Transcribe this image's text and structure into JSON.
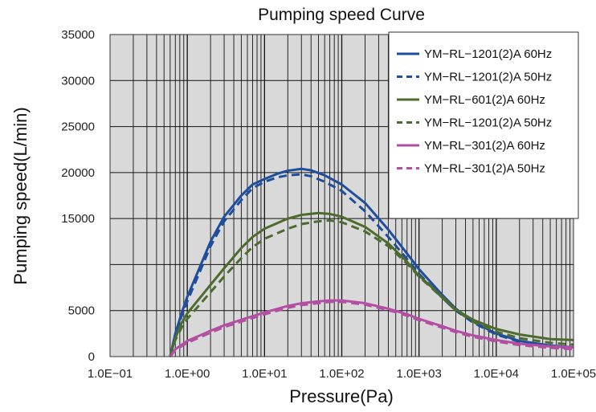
{
  "chart_data": {
    "type": "line",
    "title": "Pumping speed Curve",
    "xlabel": "Pressure(Pa)",
    "ylabel": "Pumping speed(L/min)",
    "x_scale": "log",
    "xlim": [
      0.1,
      100000
    ],
    "ylim": [
      0,
      35000
    ],
    "x_tick_labels": [
      "1.0E−01",
      "1.0E+00",
      "1.0E+01",
      "1.0E+02",
      "1.0E+03",
      "1.0E+04",
      "1.0E+05"
    ],
    "y_ticks": [
      0,
      5000,
      15000,
      20000,
      25000,
      30000,
      35000
    ],
    "y_tick_labels": [
      "0",
      "5000",
      "15000",
      "20000",
      "25000",
      "30000",
      "35000"
    ],
    "y_gridlines": [
      5000,
      10000,
      15000,
      20000,
      25000,
      30000
    ],
    "grid": true,
    "plot_background": "#d9d9d9",
    "legend_position": "top-right",
    "series": [
      {
        "name": "YM−RL−1201(2)A 60Hz",
        "color": "#1f4e9c",
        "dash": "solid",
        "points": [
          [
            0.6,
            0
          ],
          [
            0.7,
            2500
          ],
          [
            0.85,
            4800
          ],
          [
            1,
            6500
          ],
          [
            1.5,
            10000
          ],
          [
            2,
            12500
          ],
          [
            3,
            15200
          ],
          [
            5,
            17500
          ],
          [
            7,
            18700
          ],
          [
            10,
            19300
          ],
          [
            15,
            19900
          ],
          [
            20,
            20200
          ],
          [
            30,
            20400
          ],
          [
            40,
            20250
          ],
          [
            60,
            19700
          ],
          [
            100,
            18700
          ],
          [
            200,
            16700
          ],
          [
            400,
            13800
          ],
          [
            700,
            11200
          ],
          [
            1000,
            9500
          ],
          [
            2000,
            6700
          ],
          [
            3000,
            5200
          ],
          [
            5000,
            3800
          ],
          [
            10000,
            2500
          ],
          [
            20000,
            1700
          ],
          [
            50000,
            1200
          ],
          [
            100000,
            1000
          ]
        ]
      },
      {
        "name": "YM−RL−1201(2)A 50Hz",
        "color": "#1f4e9c",
        "dash": "dashed",
        "points": [
          [
            0.6,
            0
          ],
          [
            0.7,
            2300
          ],
          [
            0.85,
            4500
          ],
          [
            1,
            6000
          ],
          [
            1.5,
            9500
          ],
          [
            2,
            12000
          ],
          [
            3,
            14700
          ],
          [
            5,
            17000
          ],
          [
            7,
            18300
          ],
          [
            10,
            19000
          ],
          [
            15,
            19500
          ],
          [
            20,
            19700
          ],
          [
            30,
            19800
          ],
          [
            40,
            19600
          ],
          [
            60,
            19000
          ],
          [
            100,
            18000
          ],
          [
            200,
            15800
          ],
          [
            400,
            13000
          ],
          [
            700,
            10600
          ],
          [
            1000,
            9000
          ],
          [
            2000,
            6400
          ],
          [
            3000,
            5000
          ],
          [
            5000,
            3700
          ],
          [
            10000,
            2400
          ],
          [
            20000,
            1600
          ],
          [
            50000,
            1100
          ],
          [
            100000,
            900
          ]
        ]
      },
      {
        "name": "YM−RL−601(2)A 60Hz",
        "color": "#4e6b2f",
        "dash": "solid",
        "points": [
          [
            0.6,
            0
          ],
          [
            0.7,
            2000
          ],
          [
            0.85,
            3700
          ],
          [
            1,
            4700
          ],
          [
            2,
            7800
          ],
          [
            3,
            9600
          ],
          [
            5,
            11800
          ],
          [
            7,
            13000
          ],
          [
            10,
            13900
          ],
          [
            20,
            15000
          ],
          [
            30,
            15400
          ],
          [
            50,
            15600
          ],
          [
            70,
            15500
          ],
          [
            100,
            15200
          ],
          [
            200,
            14100
          ],
          [
            400,
            12300
          ],
          [
            700,
            10300
          ],
          [
            1000,
            8800
          ],
          [
            2000,
            6500
          ],
          [
            3000,
            5100
          ],
          [
            5000,
            4000
          ],
          [
            10000,
            3000
          ],
          [
            20000,
            2400
          ],
          [
            50000,
            1900
          ],
          [
            100000,
            1800
          ]
        ]
      },
      {
        "name": "YM−RL−1201(2)A 50Hz",
        "color": "#4e6b2f",
        "dash": "dashed",
        "points": [
          [
            0.6,
            0
          ],
          [
            0.7,
            1800
          ],
          [
            0.85,
            3200
          ],
          [
            1,
            4100
          ],
          [
            2,
            7000
          ],
          [
            3,
            8700
          ],
          [
            5,
            10700
          ],
          [
            7,
            11900
          ],
          [
            10,
            12800
          ],
          [
            20,
            13900
          ],
          [
            30,
            14400
          ],
          [
            50,
            14700
          ],
          [
            70,
            14800
          ],
          [
            100,
            14600
          ],
          [
            200,
            13600
          ],
          [
            400,
            12000
          ],
          [
            700,
            10100
          ],
          [
            1000,
            8700
          ],
          [
            2000,
            6400
          ],
          [
            3000,
            5000
          ],
          [
            5000,
            3800
          ],
          [
            10000,
            2700
          ],
          [
            20000,
            2000
          ],
          [
            50000,
            1500
          ],
          [
            100000,
            1300
          ]
        ]
      },
      {
        "name": "YM−RL−301(2)A 60Hz",
        "color": "#b34fa3",
        "dash": "solid",
        "points": [
          [
            0.6,
            0
          ],
          [
            0.7,
            800
          ],
          [
            1,
            1700
          ],
          [
            2,
            2800
          ],
          [
            3,
            3400
          ],
          [
            5,
            4000
          ],
          [
            10,
            4800
          ],
          [
            20,
            5500
          ],
          [
            30,
            5800
          ],
          [
            50,
            6000
          ],
          [
            70,
            6100
          ],
          [
            100,
            6100
          ],
          [
            200,
            5800
          ],
          [
            400,
            5200
          ],
          [
            700,
            4600
          ],
          [
            1000,
            4100
          ],
          [
            2000,
            3300
          ],
          [
            3000,
            2800
          ],
          [
            5000,
            2300
          ],
          [
            10000,
            1800
          ],
          [
            20000,
            1400
          ],
          [
            50000,
            1100
          ],
          [
            100000,
            1000
          ]
        ]
      },
      {
        "name": "YM−RL−301(2)A 50Hz",
        "color": "#b34fa3",
        "dash": "dashed",
        "points": [
          [
            0.6,
            0
          ],
          [
            0.7,
            700
          ],
          [
            1,
            1500
          ],
          [
            2,
            2600
          ],
          [
            3,
            3200
          ],
          [
            5,
            3800
          ],
          [
            10,
            4600
          ],
          [
            20,
            5300
          ],
          [
            30,
            5600
          ],
          [
            50,
            5800
          ],
          [
            70,
            5950
          ],
          [
            100,
            5950
          ],
          [
            200,
            5650
          ],
          [
            400,
            5050
          ],
          [
            700,
            4450
          ],
          [
            1000,
            3950
          ],
          [
            2000,
            3150
          ],
          [
            3000,
            2650
          ],
          [
            5000,
            2150
          ],
          [
            10000,
            1650
          ],
          [
            20000,
            1250
          ],
          [
            50000,
            950
          ],
          [
            100000,
            800
          ]
        ]
      }
    ]
  }
}
